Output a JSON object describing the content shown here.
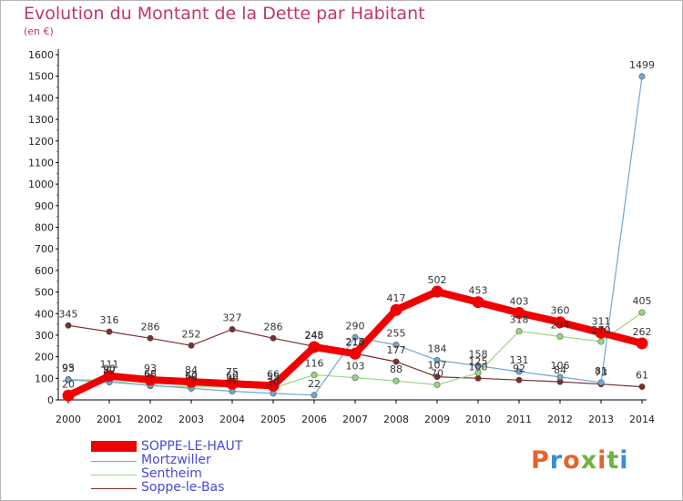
{
  "header": {
    "title": "Evolution du Montant de la Dette par Habitant",
    "subtitle": "(en €)"
  },
  "logo": {
    "text": "Proxiti",
    "colors": [
      "#e8622c",
      "#3a90d0",
      "#e8622c",
      "#6cb43e",
      "#e8622c",
      "#6cb43e",
      "#3a90d0"
    ]
  },
  "chart_data": {
    "type": "line",
    "title": "Evolution du Montant de la Dette par Habitant",
    "subtitle": "(en €)",
    "x": [
      "2000",
      "2001",
      "2002",
      "2003",
      "2004",
      "2005",
      "2006",
      "2007",
      "2008",
      "2009",
      "2010",
      "2011",
      "2012",
      "2013",
      "2014"
    ],
    "yticks": [
      "0",
      "100",
      "200",
      "300",
      "400",
      "500",
      "600",
      "700",
      "800",
      "900",
      "1000",
      "1100",
      "1200",
      "1300",
      "1400",
      "1500",
      "1600"
    ],
    "ylim": [
      0,
      1600
    ],
    "grid": false,
    "legend_position": "bottom-left",
    "series": [
      {
        "name": "SOPPE-LE-HAUT",
        "color": "#f00000",
        "values": [
          20,
          111,
          93,
          84,
          75,
          66,
          245,
          214,
          417,
          502,
          453,
          403,
          360,
          311,
          262
        ]
      },
      {
        "name": "Mortzwiller",
        "color": "#6fa8d4",
        "values": [
          93,
          82,
          68,
          53,
          40,
          30,
          22,
          290,
          255,
          184,
          158,
          131,
          106,
          81,
          1499
        ]
      },
      {
        "name": "Sentheim",
        "color": "#98d880",
        "values": [
          95,
          90,
          65,
          60,
          60,
          55,
          116,
          103,
          88,
          70,
          125,
          318,
          294,
          270,
          405
        ]
      },
      {
        "name": "Soppe-le-Bas",
        "color": "#7a2e2e",
        "values": [
          345,
          316,
          286,
          252,
          327,
          286,
          248,
          215,
          177,
          107,
          100,
          92,
          84,
          73,
          61
        ]
      }
    ]
  }
}
